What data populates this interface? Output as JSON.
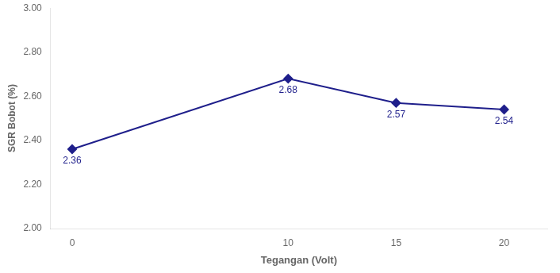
{
  "chart_data": {
    "type": "line",
    "x": [
      0,
      10,
      15,
      20
    ],
    "values": [
      2.36,
      2.68,
      2.57,
      2.54
    ],
    "xlabel": "Tegangan (Volt)",
    "ylabel": "SGR Bobot (%)",
    "xlim": [
      -1,
      22
    ],
    "xticks": [
      0,
      10,
      15,
      20
    ],
    "ylim": [
      2,
      3
    ],
    "yticks": [
      {
        "value": 2,
        "label": "2.00"
      },
      {
        "value": 2.2,
        "label": "2.20"
      },
      {
        "value": 2.4,
        "label": "2.40"
      },
      {
        "value": 2.6,
        "label": "2.60"
      },
      {
        "value": 2.8,
        "label": "2.80"
      },
      {
        "value": 3,
        "label": "3.00"
      }
    ],
    "color": "#1F1F8B",
    "marker": "diamond",
    "data_labels": true,
    "grid": false
  }
}
